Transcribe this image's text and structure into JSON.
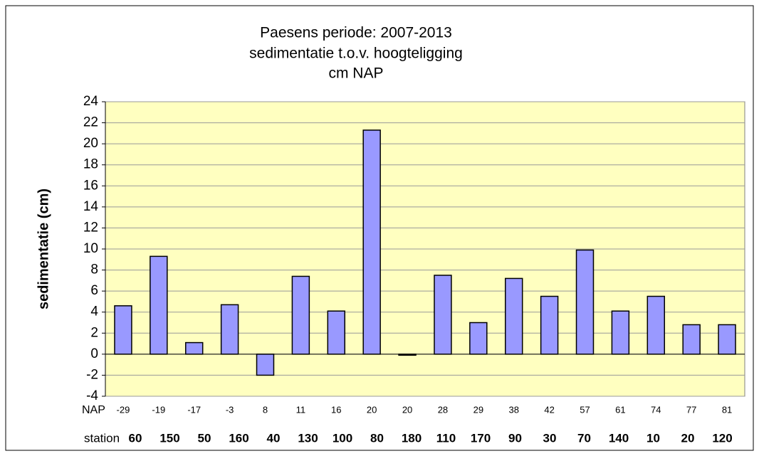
{
  "chart_data": {
    "type": "bar",
    "title": [
      "Paesens periode: 2007-2013",
      "sedimentatie t.o.v. hoogteligging",
      "cm NAP"
    ],
    "y_label": "sedimentatie (cm)",
    "category_row_label": "NAP",
    "station_row_label": "station",
    "categories": [
      "-29",
      "-19",
      "-17",
      "-3",
      "8",
      "11",
      "16",
      "20",
      "20",
      "28",
      "29",
      "38",
      "42",
      "57",
      "61",
      "74",
      "77",
      "81"
    ],
    "stations": [
      "60",
      "150",
      "50",
      "160",
      "40",
      "130",
      "100",
      "80",
      "180",
      "110",
      "170",
      "90",
      "30",
      "70",
      "140",
      "10",
      "20",
      "120"
    ],
    "values": [
      4.6,
      9.3,
      1.1,
      4.7,
      -2.0,
      7.4,
      4.1,
      21.3,
      -0.1,
      7.5,
      3.0,
      7.2,
      5.5,
      9.9,
      4.1,
      5.5,
      2.8,
      2.8
    ],
    "color": "#9999ff",
    "plot_background": "#ffffc0",
    "ylim": [
      -4,
      24
    ],
    "yticks": [
      -4,
      -2,
      0,
      2,
      4,
      6,
      8,
      10,
      12,
      14,
      16,
      18,
      20,
      22,
      24
    ],
    "grid": true
  }
}
